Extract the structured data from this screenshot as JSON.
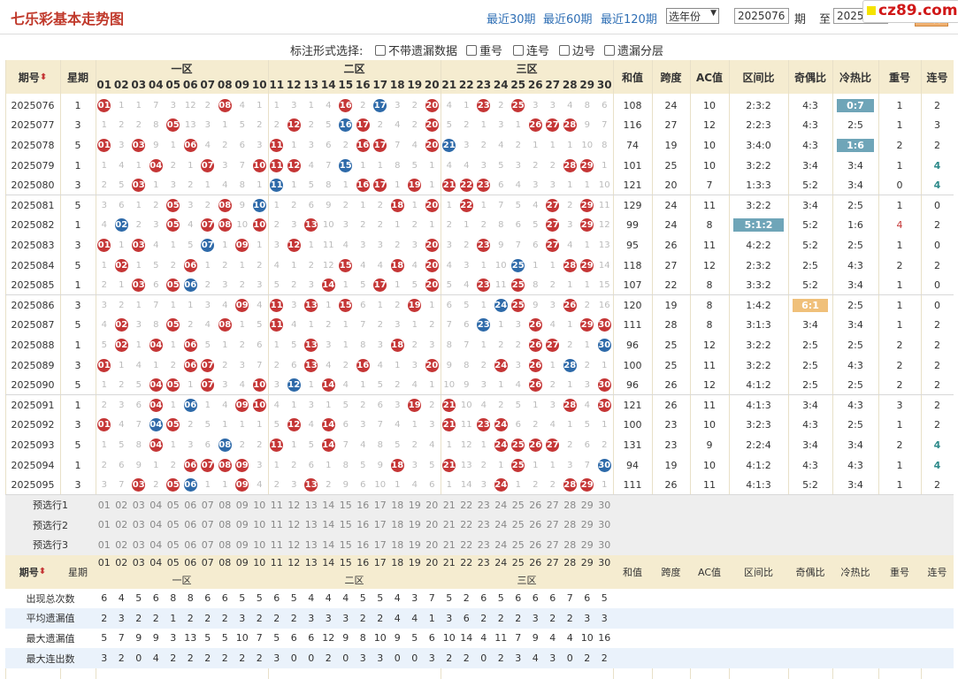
{
  "header": {
    "title": "七乐彩基本走势图",
    "quick_links": [
      "最近30期",
      "最近60期",
      "最近120期"
    ],
    "year_select": "选年份",
    "from_value": "2025076",
    "period_label": "期",
    "to_label": "至",
    "to_value": "2025095",
    "query_button": "查看",
    "logo_text": "cz89.com"
  },
  "format_bar": {
    "label": "标注形式选择:",
    "options": [
      "不带遗漏数据",
      "重号",
      "连号",
      "边号",
      "遗漏分层"
    ]
  },
  "columns": {
    "period": "期号",
    "weekday": "星期",
    "zones": [
      "一区",
      "二区",
      "三区"
    ],
    "stats": [
      "和值",
      "跨度",
      "AC值",
      "区间比",
      "奇偶比",
      "冷热比",
      "重号",
      "连号"
    ]
  },
  "colors": {
    "red_ball": "#c53636",
    "blue_ball": "#2e6aa9",
    "header_bg": "#f5ecd0",
    "highlight": "#6fa5b8"
  },
  "draws": [
    {
      "period": "2025076",
      "week": "1",
      "cells": [
        "01r",
        "1",
        "1",
        "7",
        "3",
        "12",
        "2",
        "08r",
        "4",
        "1",
        "1",
        "3",
        "1",
        "4",
        "16r",
        "2",
        "17b",
        "3",
        "2",
        "20r",
        "4",
        "1",
        "23r",
        "2",
        "25r",
        "3",
        "3",
        "4",
        "8",
        "6"
      ],
      "stats": [
        "108",
        "24",
        "10",
        "2:3:2",
        "4:3",
        "0:7",
        "1",
        "2"
      ]
    },
    {
      "period": "2025077",
      "week": "3",
      "cells": [
        "1",
        "2",
        "2",
        "8",
        "05r",
        "13",
        "3",
        "1",
        "5",
        "2",
        "2",
        "12r",
        "2",
        "5",
        "16b",
        "17r",
        "2",
        "4",
        "2",
        "20r",
        "5",
        "2",
        "1",
        "3",
        "1",
        "26r",
        "27r",
        "28r",
        "9",
        "7"
      ],
      "stats": [
        "116",
        "27",
        "12",
        "2:2:3",
        "4:3",
        "2:5",
        "1",
        "3"
      ]
    },
    {
      "period": "2025078",
      "week": "5",
      "cells": [
        "01r",
        "3",
        "03r",
        "9",
        "1",
        "06r",
        "4",
        "2",
        "6",
        "3",
        "11r",
        "1",
        "3",
        "6",
        "2",
        "16r",
        "17r",
        "7",
        "4",
        "20r",
        "21b",
        "3",
        "2",
        "4",
        "2",
        "1",
        "1",
        "1",
        "10",
        "8"
      ],
      "stats": [
        "74",
        "19",
        "10",
        "3:4:0",
        "4:3",
        "1:6",
        "2",
        "2"
      ]
    },
    {
      "period": "2025079",
      "week": "1",
      "cells": [
        "1",
        "4",
        "1",
        "04r",
        "2",
        "1",
        "07r",
        "3",
        "7",
        "10r",
        "11r",
        "12r",
        "4",
        "7",
        "15b",
        "1",
        "1",
        "8",
        "5",
        "1",
        "4",
        "4",
        "3",
        "5",
        "3",
        "2",
        "2",
        "28r",
        "29r",
        "1"
      ],
      "stats": [
        "101",
        "25",
        "10",
        "3:2:2",
        "3:4",
        "3:4",
        "1",
        "4"
      ]
    },
    {
      "period": "2025080",
      "week": "3",
      "cells": [
        "2",
        "5",
        "03r",
        "1",
        "3",
        "2",
        "1",
        "4",
        "8",
        "1",
        "11b",
        "1",
        "5",
        "8",
        "1",
        "16r",
        "17r",
        "1",
        "19r",
        "1",
        "21r",
        "22r",
        "23r",
        "6",
        "4",
        "3",
        "3",
        "1",
        "1",
        "10"
      ],
      "stats": [
        "121",
        "20",
        "7",
        "1:3:3",
        "5:2",
        "3:4",
        "0",
        "4"
      ]
    },
    {
      "period": "2025081",
      "week": "5",
      "cells": [
        "3",
        "6",
        "1",
        "2",
        "05r",
        "3",
        "2",
        "08r",
        "9",
        "10b",
        "1",
        "2",
        "6",
        "9",
        "2",
        "1",
        "2",
        "18r",
        "1",
        "20r",
        "1",
        "22r",
        "1",
        "7",
        "5",
        "4",
        "27r",
        "2",
        "29r",
        "11"
      ],
      "stats": [
        "129",
        "24",
        "11",
        "3:2:2",
        "3:4",
        "2:5",
        "1",
        "0"
      ]
    },
    {
      "period": "2025082",
      "week": "1",
      "cells": [
        "4",
        "02b",
        "2",
        "3",
        "05r",
        "4",
        "07r",
        "08r",
        "10",
        "10r",
        "2",
        "3",
        "13r",
        "10",
        "3",
        "2",
        "2",
        "1",
        "2",
        "1",
        "2",
        "1",
        "2",
        "8",
        "6",
        "5",
        "27r",
        "3",
        "29r",
        "12"
      ],
      "stats": [
        "99",
        "24",
        "8",
        "5:1:2",
        "5:2",
        "1:6",
        "4",
        "2"
      ]
    },
    {
      "period": "2025083",
      "week": "3",
      "cells": [
        "01r",
        "1",
        "03r",
        "4",
        "1",
        "5",
        "07b",
        "1",
        "09r",
        "1",
        "3",
        "12r",
        "1",
        "11",
        "4",
        "3",
        "3",
        "2",
        "3",
        "20r",
        "3",
        "2",
        "23r",
        "9",
        "7",
        "6",
        "27r",
        "4",
        "1",
        "13"
      ],
      "stats": [
        "95",
        "26",
        "11",
        "4:2:2",
        "5:2",
        "2:5",
        "1",
        "0"
      ]
    },
    {
      "period": "2025084",
      "week": "5",
      "cells": [
        "1",
        "02r",
        "1",
        "5",
        "2",
        "06r",
        "1",
        "2",
        "1",
        "2",
        "4",
        "1",
        "2",
        "12",
        "15r",
        "4",
        "4",
        "18r",
        "4",
        "20r",
        "4",
        "3",
        "1",
        "10",
        "25b",
        "1",
        "1",
        "28r",
        "29r",
        "14"
      ],
      "stats": [
        "118",
        "27",
        "12",
        "2:3:2",
        "2:5",
        "4:3",
        "2",
        "2"
      ]
    },
    {
      "period": "2025085",
      "week": "1",
      "cells": [
        "2",
        "1",
        "03r",
        "6",
        "05r",
        "06b",
        "2",
        "3",
        "2",
        "3",
        "5",
        "2",
        "3",
        "14r",
        "1",
        "5",
        "17r",
        "1",
        "5",
        "20r",
        "5",
        "4",
        "23r",
        "11",
        "25r",
        "8",
        "2",
        "1",
        "1",
        "15"
      ],
      "stats": [
        "107",
        "22",
        "8",
        "3:3:2",
        "5:2",
        "3:4",
        "1",
        "0"
      ]
    },
    {
      "period": "2025086",
      "week": "3",
      "cells": [
        "3",
        "2",
        "1",
        "7",
        "1",
        "1",
        "3",
        "4",
        "09r",
        "4",
        "11r",
        "3",
        "13r",
        "1",
        "15r",
        "6",
        "1",
        "2",
        "19r",
        "1",
        "6",
        "5",
        "1",
        "24b",
        "25r",
        "9",
        "3",
        "26r",
        "2",
        "16"
      ],
      "stats": [
        "120",
        "19",
        "8",
        "1:4:2",
        "6:1",
        "2:5",
        "1",
        "0"
      ]
    },
    {
      "period": "2025087",
      "week": "5",
      "cells": [
        "4",
        "02r",
        "3",
        "8",
        "05r",
        "2",
        "4",
        "08r",
        "1",
        "5",
        "11r",
        "4",
        "1",
        "2",
        "1",
        "7",
        "2",
        "3",
        "1",
        "2",
        "7",
        "6",
        "23b",
        "1",
        "3",
        "26r",
        "4",
        "1",
        "29r",
        "30r"
      ],
      "stats": [
        "111",
        "28",
        "8",
        "3:1:3",
        "3:4",
        "3:4",
        "1",
        "2"
      ]
    },
    {
      "period": "2025088",
      "week": "1",
      "cells": [
        "5",
        "02r",
        "1",
        "04r",
        "1",
        "06r",
        "5",
        "1",
        "2",
        "6",
        "1",
        "5",
        "13r",
        "3",
        "1",
        "8",
        "3",
        "18r",
        "2",
        "3",
        "8",
        "7",
        "1",
        "2",
        "2",
        "26r",
        "27r",
        "2",
        "1",
        "30b"
      ],
      "stats": [
        "96",
        "25",
        "12",
        "3:2:2",
        "2:5",
        "2:5",
        "2",
        "2"
      ]
    },
    {
      "period": "2025089",
      "week": "3",
      "cells": [
        "01r",
        "1",
        "4",
        "1",
        "2",
        "06r",
        "07r",
        "2",
        "3",
        "7",
        "2",
        "6",
        "13r",
        "4",
        "2",
        "16r",
        "4",
        "1",
        "3",
        "20r",
        "9",
        "8",
        "2",
        "24r",
        "3",
        "26r",
        "1",
        "28b",
        "2",
        "1"
      ],
      "stats": [
        "100",
        "25",
        "11",
        "3:2:2",
        "2:5",
        "4:3",
        "2",
        "2"
      ]
    },
    {
      "period": "2025090",
      "week": "5",
      "cells": [
        "1",
        "2",
        "5",
        "04r",
        "05r",
        "1",
        "07r",
        "3",
        "4",
        "10r",
        "3",
        "12b",
        "1",
        "14r",
        "4",
        "1",
        "5",
        "2",
        "4",
        "1",
        "10",
        "9",
        "3",
        "1",
        "4",
        "26r",
        "2",
        "1",
        "3",
        "30r"
      ],
      "stats": [
        "96",
        "26",
        "12",
        "4:1:2",
        "2:5",
        "2:5",
        "2",
        "2"
      ]
    },
    {
      "period": "2025091",
      "week": "1",
      "cells": [
        "2",
        "3",
        "6",
        "04r",
        "1",
        "06b",
        "1",
        "4",
        "09r",
        "10r",
        "4",
        "1",
        "3",
        "1",
        "5",
        "2",
        "6",
        "3",
        "19r",
        "2",
        "21r",
        "10",
        "4",
        "2",
        "5",
        "1",
        "3",
        "28r",
        "4",
        "30r"
      ],
      "stats": [
        "121",
        "26",
        "11",
        "4:1:3",
        "3:4",
        "4:3",
        "3",
        "2"
      ]
    },
    {
      "period": "2025092",
      "week": "3",
      "cells": [
        "01r",
        "4",
        "7",
        "04b",
        "05r",
        "2",
        "5",
        "1",
        "1",
        "1",
        "5",
        "12r",
        "4",
        "14r",
        "6",
        "3",
        "7",
        "4",
        "1",
        "3",
        "21r",
        "11",
        "23r",
        "24r",
        "6",
        "2",
        "4",
        "1",
        "5",
        "1"
      ],
      "stats": [
        "100",
        "23",
        "10",
        "3:2:3",
        "4:3",
        "2:5",
        "1",
        "2"
      ]
    },
    {
      "period": "2025093",
      "week": "5",
      "cells": [
        "1",
        "5",
        "8",
        "04r",
        "1",
        "3",
        "6",
        "08b",
        "2",
        "2",
        "11r",
        "1",
        "5",
        "14r",
        "7",
        "4",
        "8",
        "5",
        "2",
        "4",
        "1",
        "12",
        "1",
        "24r",
        "25r",
        "26r",
        "27r",
        "2",
        "6",
        "2"
      ],
      "stats": [
        "131",
        "23",
        "9",
        "2:2:4",
        "3:4",
        "3:4",
        "2",
        "4"
      ]
    },
    {
      "period": "2025094",
      "week": "1",
      "cells": [
        "2",
        "6",
        "9",
        "1",
        "2",
        "06r",
        "07r",
        "08r",
        "09r",
        "3",
        "1",
        "2",
        "6",
        "1",
        "8",
        "5",
        "9",
        "18r",
        "3",
        "5",
        "21r",
        "13",
        "2",
        "1",
        "25r",
        "1",
        "1",
        "3",
        "7",
        "30b"
      ],
      "stats": [
        "94",
        "19",
        "10",
        "4:1:2",
        "4:3",
        "4:3",
        "1",
        "4"
      ]
    },
    {
      "period": "2025095",
      "week": "3",
      "cells": [
        "3",
        "7",
        "03r",
        "2",
        "05r",
        "06b",
        "1",
        "1",
        "09r",
        "4",
        "2",
        "3",
        "13r",
        "2",
        "9",
        "6",
        "10",
        "1",
        "4",
        "6",
        "1",
        "14",
        "3",
        "24r",
        "1",
        "2",
        "2",
        "28r",
        "29r",
        "1"
      ],
      "stats": [
        "111",
        "26",
        "11",
        "4:1:3",
        "5:2",
        "3:4",
        "1",
        "2"
      ]
    }
  ],
  "preselect": [
    "预选行1",
    "预选行2",
    "预选行3"
  ],
  "numbers": [
    "01",
    "02",
    "03",
    "04",
    "05",
    "06",
    "07",
    "08",
    "09",
    "10",
    "11",
    "12",
    "13",
    "14",
    "15",
    "16",
    "17",
    "18",
    "19",
    "20",
    "21",
    "22",
    "23",
    "24",
    "25",
    "26",
    "27",
    "28",
    "29",
    "30"
  ],
  "summary": [
    {
      "label": "出现总次数",
      "values": [
        "6",
        "4",
        "5",
        "6",
        "8",
        "8",
        "6",
        "6",
        "5",
        "5",
        "6",
        "5",
        "4",
        "4",
        "4",
        "5",
        "5",
        "4",
        "3",
        "7",
        "5",
        "2",
        "6",
        "5",
        "6",
        "6",
        "6",
        "7",
        "6",
        "5"
      ]
    },
    {
      "label": "平均遗漏值",
      "values": [
        "2",
        "3",
        "2",
        "2",
        "1",
        "2",
        "2",
        "2",
        "3",
        "2",
        "2",
        "2",
        "3",
        "3",
        "3",
        "2",
        "2",
        "4",
        "4",
        "1",
        "3",
        "6",
        "2",
        "2",
        "2",
        "3",
        "2",
        "2",
        "3",
        "3"
      ]
    },
    {
      "label": "最大遗漏值",
      "values": [
        "5",
        "7",
        "9",
        "9",
        "3",
        "13",
        "5",
        "5",
        "10",
        "7",
        "5",
        "6",
        "6",
        "12",
        "9",
        "8",
        "10",
        "9",
        "5",
        "6",
        "10",
        "14",
        "4",
        "11",
        "7",
        "9",
        "4",
        "4",
        "10",
        "16"
      ]
    },
    {
      "label": "最大连出数",
      "values": [
        "3",
        "2",
        "0",
        "4",
        "2",
        "2",
        "2",
        "2",
        "2",
        "2",
        "3",
        "0",
        "0",
        "2",
        "0",
        "3",
        "3",
        "0",
        "0",
        "3",
        "2",
        "2",
        "0",
        "2",
        "3",
        "4",
        "3",
        "0",
        "2",
        "2"
      ]
    }
  ],
  "stat_highlights": {
    "2025076": "5",
    "2025078": "5",
    "2025082": "3",
    "2025086": "4"
  }
}
